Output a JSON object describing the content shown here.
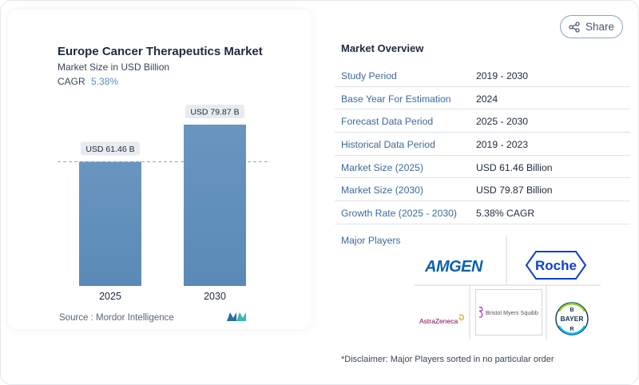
{
  "chart_data": {
    "type": "bar",
    "title": "Europe Cancer Therapeutics Market",
    "subtitle": "Market Size in USD Billion",
    "cagr_label": "CAGR",
    "cagr_value": "5.38%",
    "categories": [
      "2025",
      "2030"
    ],
    "values": [
      61.46,
      79.87
    ],
    "data_labels": [
      "USD 61.46 B",
      "USD 79.87 B"
    ],
    "xlabel": "",
    "ylabel": "",
    "grid": false,
    "reference_line_at": 61.46
  },
  "source": "Source :  Mordor Intelligence",
  "share": {
    "label": "Share",
    "icon": "share-icon"
  },
  "overview": {
    "title": "Market Overview",
    "rows": [
      {
        "label": "Study Period",
        "value": "2019 - 2030"
      },
      {
        "label": "Base Year For Estimation",
        "value": "2024"
      },
      {
        "label": "Forecast Data Period",
        "value": "2025 - 2030"
      },
      {
        "label": "Historical Data Period",
        "value": "2019 - 2023"
      },
      {
        "label": "Market Size (2025)",
        "value": "USD 61.46 Billion"
      },
      {
        "label": "Market Size (2030)",
        "value": "USD 79.87 Billion"
      },
      {
        "label": "Growth Rate (2025 - 2030)",
        "value": "5.38% CAGR"
      }
    ]
  },
  "players": {
    "label": "Major Players",
    "logos": [
      "AMGEN",
      "Roche",
      "AstraZeneca",
      "Bristol Myers Squibb",
      "BAYER"
    ]
  },
  "disclaimer": "*Disclaimer: Major Players sorted in no particular order",
  "colors": {
    "bar": "#5f8fbb",
    "bar_top": "#6e9ac3",
    "label_bg": "#e8ecf1",
    "accent": "#3d6a9a"
  }
}
